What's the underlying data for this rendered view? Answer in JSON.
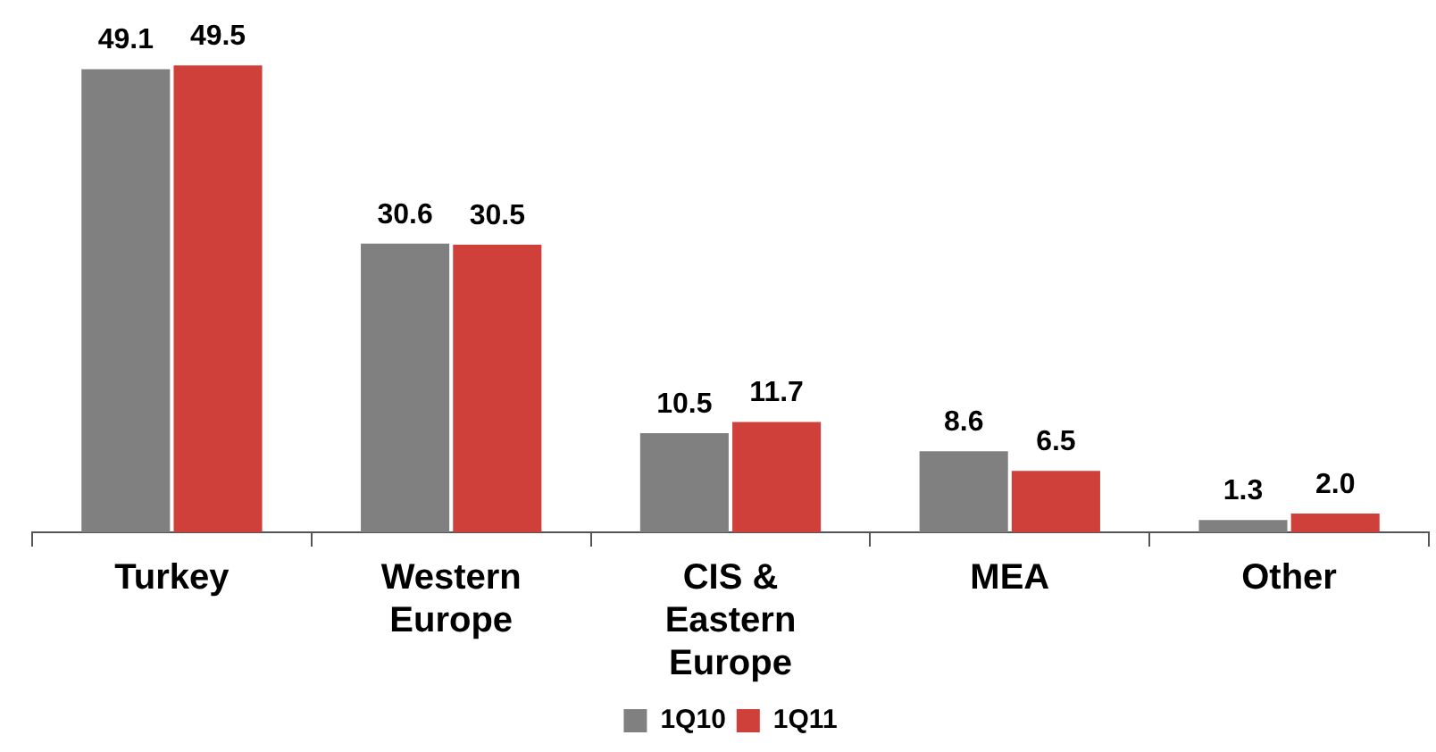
{
  "chart_data": {
    "type": "bar",
    "categories": [
      "Turkey",
      "Western Europe",
      "CIS & Eastern Europe",
      "MEA",
      "Other"
    ],
    "series": [
      {
        "name": "1Q10",
        "color": "#808080",
        "values": [
          49.1,
          30.6,
          10.5,
          8.6,
          1.3
        ],
        "value_labels": [
          "49.1",
          "30.6",
          "10.5",
          "8.6",
          "1.3"
        ]
      },
      {
        "name": "1Q11",
        "color": "#d0403a",
        "values": [
          49.5,
          30.5,
          11.7,
          6.5,
          2.0
        ],
        "value_labels": [
          "49.5",
          "30.5",
          "11.7",
          "6.5",
          "2.0"
        ]
      }
    ],
    "legend": "bottom",
    "grid": false
  }
}
